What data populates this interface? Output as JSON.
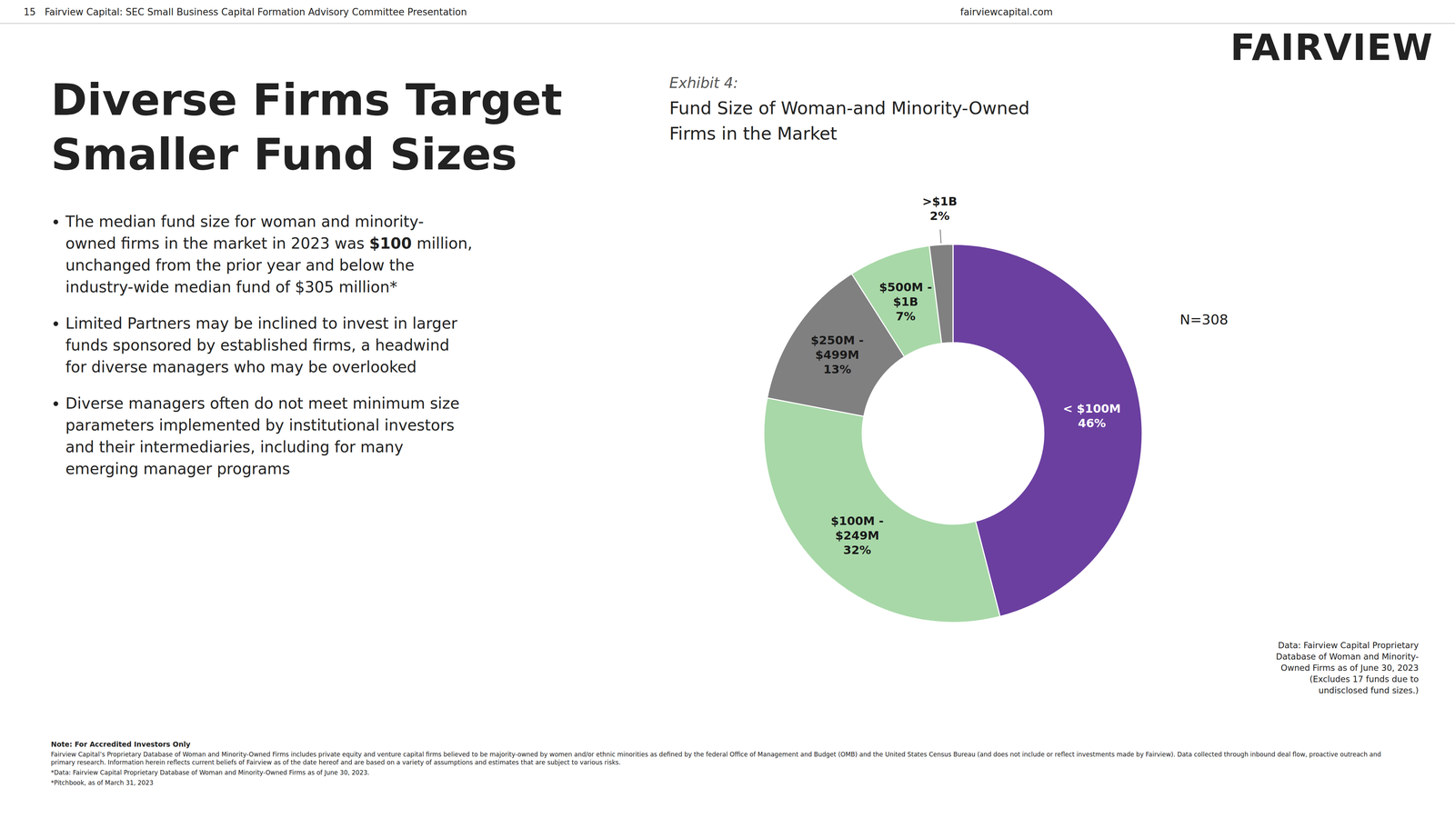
{
  "header_text": "15   Fairview Capital: SEC Small Business Capital Formation Advisory Committee Presentation",
  "header_right": "fairviewcapital.com",
  "logo_text": "FAIRVIEW",
  "page_title": "Diverse Firms Target\nSmaller Fund Sizes",
  "bullets": [
    {
      "text": "The median fund size for woman and minority-\nowned firms in the market in 2023 was ",
      "bold": "$100",
      "text_after": " million,\nunchanged from the prior year and below the\nindustry-wide median fund of $305 million*"
    },
    "Limited Partners may be inclined to invest in larger\nfunds sponsored by established firms, a headwind\nfor diverse managers who may be overlooked",
    "Diverse managers often do not meet minimum size\nparameters implemented by institutional investors\nand their intermediaries, including for many\nemerging manager programs"
  ],
  "footer_notes": [
    "Note: For Accredited Investors Only",
    "Fairview Capital’s Proprietary Database of Woman and Minority-Owned Firms includes private equity and venture capital firms believed to be majority-owned by women and/or ethnic minorities as defined by the federal Office of Management and Budget (OMB) and the United States Census Bureau (and does not include or reflect investments made by Fairview). Data collected through inbound deal flow, proactive outreach and primary research. Information herein reflects current beliefs of Fairview as of the date hereof and are based on a variety of assumptions and estimates that are subject to various risks.",
    "*Data: Fairview Capital Proprietary Database of Woman and Minority-Owned Firms as of June 30, 2023.",
    "*Pitchbook, as of March 31, 2023"
  ],
  "chart_data": {
    "type": "donut",
    "subtitle": "Exhibit 4:",
    "title": "Fund Size of Woman-and Minority-Owned\nFirms in the Market",
    "categories": [
      "< $100M",
      "$100M -\n$249M",
      "$250M -\n$499M",
      "$500M -\n$1B",
      ">$1B"
    ],
    "values": [
      46,
      32,
      13,
      7,
      2
    ],
    "value_labels": [
      "46%",
      "32%",
      "13%",
      "7%",
      "2%"
    ],
    "colors": [
      "#6b3fa0",
      "#a8d8a8",
      "#808080",
      "#a8d8a8",
      "#808080"
    ],
    "data_labels": true,
    "annotations": [
      "N=308",
      "Data: Fairview Capital Proprietary\nDatabase of Woman and Minority-\nOwned Firms as of June 30, 2023\n(Excludes 17 funds due to\nundisclosed fund sizes.)"
    ]
  }
}
